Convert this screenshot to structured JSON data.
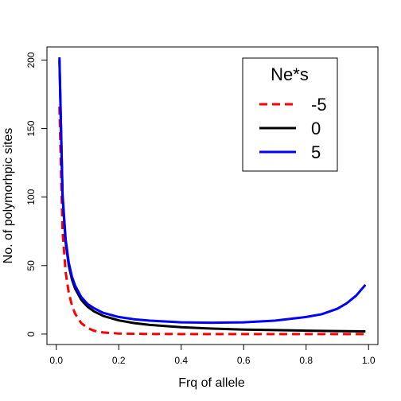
{
  "chart_data": {
    "type": "line",
    "xlabel": "Frq of allele",
    "ylabel": "No. of polymorhpic sites",
    "xlim": [
      0,
      1
    ],
    "ylim": [
      0,
      200
    ],
    "xticks": [
      "0.0",
      "0.2",
      "0.4",
      "0.6",
      "0.8",
      "1.0"
    ],
    "yticks": [
      "0",
      "50",
      "100",
      "150",
      "200"
    ],
    "legend": {
      "title": "Ne*s",
      "position": "top-right"
    },
    "series": [
      {
        "name": "-5",
        "color": "#ff0000",
        "dash": "dashed",
        "x": [
          0.01,
          0.02,
          0.03,
          0.04,
          0.05,
          0.06,
          0.08,
          0.1,
          0.12,
          0.15,
          0.2,
          0.3,
          0.4,
          0.5,
          0.6,
          0.7,
          0.8,
          0.9,
          0.99
        ],
        "y": [
          166,
          75,
          45,
          30,
          21,
          15,
          8,
          4.5,
          2.5,
          1.2,
          0.4,
          0.1,
          0.05,
          0,
          0,
          0,
          0,
          0,
          0
        ]
      },
      {
        "name": "0",
        "color": "#000000",
        "dash": "solid",
        "x": [
          0.01,
          0.02,
          0.03,
          0.04,
          0.05,
          0.06,
          0.08,
          0.1,
          0.12,
          0.15,
          0.2,
          0.25,
          0.3,
          0.4,
          0.5,
          0.6,
          0.7,
          0.8,
          0.9,
          0.99
        ],
        "y": [
          200,
          100,
          66.7,
          50,
          40,
          33.3,
          25,
          20,
          16.7,
          13.3,
          10,
          8,
          6.7,
          5,
          4,
          3.3,
          2.9,
          2.5,
          2.2,
          2
        ]
      },
      {
        "name": "5",
        "color": "#0000ff",
        "dash": "solid",
        "x": [
          0.01,
          0.02,
          0.03,
          0.04,
          0.05,
          0.06,
          0.08,
          0.1,
          0.12,
          0.15,
          0.2,
          0.25,
          0.3,
          0.4,
          0.5,
          0.6,
          0.7,
          0.8,
          0.85,
          0.9,
          0.93,
          0.96,
          0.99
        ],
        "y": [
          202,
          102,
          69,
          52,
          42,
          35.5,
          27,
          22,
          19,
          15.5,
          12.5,
          10.8,
          9.8,
          8.6,
          8.3,
          8.6,
          9.8,
          12.5,
          14.5,
          18.5,
          22.5,
          28,
          36
        ]
      }
    ]
  }
}
